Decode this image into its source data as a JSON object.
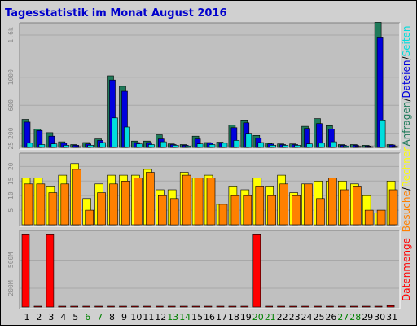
{
  "title": "Tagesstatistik im Monat August 2016",
  "colors": {
    "title": "#0000cc",
    "background": "#d0d0d0",
    "panel": "#c0c0c0",
    "anfragen": "#1f7a5a",
    "dateien": "#0000dd",
    "seiten": "#00dddd",
    "rechner": "#ffff00",
    "besuche": "#ff8000",
    "datenmenge": "#ff0000",
    "weekend": "#008000",
    "weekday": "#000000"
  },
  "chart_data": [
    {
      "type": "bar",
      "panel": "top",
      "categories": [
        "1",
        "2",
        "3",
        "4",
        "5",
        "6",
        "7",
        "8",
        "9",
        "10",
        "11",
        "12",
        "13",
        "14",
        "15",
        "16",
        "17",
        "18",
        "19",
        "20",
        "21",
        "22",
        "23",
        "24",
        "25",
        "26",
        "27",
        "28",
        "29",
        "30",
        "31"
      ],
      "weekend_days": [
        "6",
        "7",
        "13",
        "14",
        "20",
        "21",
        "27",
        "28"
      ],
      "ylim": [
        0,
        1750
      ],
      "y_ticks": [
        "25",
        "200",
        "600",
        "1000",
        "1.6k"
      ],
      "y_tick_values": [
        25,
        200,
        600,
        1000,
        1600
      ],
      "series": [
        {
          "name": "Anfragen",
          "color": "#1f7a5a",
          "values": [
            400,
            260,
            210,
            80,
            40,
            70,
            120,
            1020,
            870,
            90,
            90,
            180,
            50,
            40,
            160,
            70,
            75,
            320,
            390,
            170,
            60,
            50,
            50,
            300,
            410,
            310,
            40,
            40,
            30,
            1780,
            40
          ]
        },
        {
          "name": "Dateien",
          "color": "#0000dd",
          "values": [
            360,
            240,
            160,
            60,
            30,
            50,
            100,
            960,
            800,
            70,
            70,
            120,
            40,
            30,
            120,
            60,
            60,
            280,
            350,
            130,
            50,
            40,
            40,
            270,
            340,
            260,
            30,
            30,
            20,
            1560,
            35
          ]
        },
        {
          "name": "Seiten",
          "color": "#00dddd",
          "values": [
            60,
            40,
            50,
            30,
            10,
            30,
            70,
            420,
            290,
            50,
            40,
            80,
            30,
            20,
            50,
            40,
            60,
            100,
            200,
            70,
            30,
            30,
            30,
            50,
            60,
            80,
            20,
            15,
            10,
            390,
            15
          ]
        }
      ],
      "side_labels": [
        "Anfragen",
        "Dateien",
        "Seiten"
      ]
    },
    {
      "type": "bar",
      "panel": "middle",
      "categories": [
        "1",
        "2",
        "3",
        "4",
        "5",
        "6",
        "7",
        "8",
        "9",
        "10",
        "11",
        "12",
        "13",
        "14",
        "15",
        "16",
        "17",
        "18",
        "19",
        "20",
        "21",
        "22",
        "23",
        "24",
        "25",
        "26",
        "27",
        "28",
        "29",
        "30",
        "31"
      ],
      "ylim": [
        0,
        24
      ],
      "y_ticks": [
        "5",
        "10",
        "15",
        "20"
      ],
      "y_tick_values": [
        5,
        10,
        15,
        20
      ],
      "series": [
        {
          "name": "Rechner",
          "color": "#ffff00",
          "values": [
            16,
            16,
            13,
            17,
            21,
            9,
            14,
            17,
            17,
            17,
            19,
            12,
            12,
            18,
            16,
            17,
            7,
            13,
            12,
            16,
            13,
            17,
            11,
            14,
            15,
            15,
            15,
            14,
            10,
            4,
            15
          ]
        },
        {
          "name": "Besuche",
          "color": "#ff8000",
          "values": [
            14,
            14,
            11,
            14,
            19,
            5,
            11,
            14,
            15,
            16,
            18,
            10,
            9,
            17,
            16,
            16,
            7,
            10,
            10,
            13,
            10,
            14,
            10,
            14,
            9,
            16,
            12,
            13,
            5,
            5,
            12
          ]
        }
      ],
      "side_labels": [
        "Besuche",
        "Rechner"
      ]
    },
    {
      "type": "bar",
      "panel": "bottom",
      "categories": [
        "1",
        "2",
        "3",
        "4",
        "5",
        "6",
        "7",
        "8",
        "9",
        "10",
        "11",
        "12",
        "13",
        "14",
        "15",
        "16",
        "17",
        "18",
        "19",
        "20",
        "21",
        "22",
        "23",
        "24",
        "25",
        "26",
        "27",
        "28",
        "29",
        "30",
        "31"
      ],
      "ylim": [
        0,
        800
      ],
      "y_ticks": [
        "200M",
        "500M"
      ],
      "y_tick_values": [
        200,
        500
      ],
      "series": [
        {
          "name": "Datenmenge",
          "color": "#ff0000",
          "values": [
            780,
            5,
            780,
            5,
            5,
            5,
            5,
            5,
            5,
            5,
            5,
            5,
            5,
            5,
            5,
            5,
            5,
            5,
            5,
            780,
            5,
            5,
            5,
            5,
            5,
            5,
            5,
            5,
            5,
            5,
            15
          ]
        }
      ],
      "side_labels": [
        "Datenmenge"
      ]
    }
  ]
}
